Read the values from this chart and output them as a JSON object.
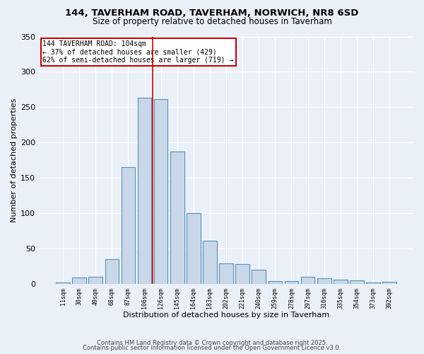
{
  "title": "144, TAVERHAM ROAD, TAVERHAM, NORWICH, NR8 6SD",
  "subtitle": "Size of property relative to detached houses in Taverham",
  "xlabel": "Distribution of detached houses by size in Taverham",
  "ylabel": "Number of detached properties",
  "bar_labels": [
    "11sqm",
    "30sqm",
    "49sqm",
    "68sqm",
    "87sqm",
    "106sqm",
    "126sqm",
    "145sqm",
    "164sqm",
    "183sqm",
    "202sqm",
    "221sqm",
    "240sqm",
    "259sqm",
    "278sqm",
    "297sqm",
    "316sqm",
    "335sqm",
    "354sqm",
    "373sqm",
    "392sqm"
  ],
  "bar_values": [
    2,
    9,
    10,
    35,
    165,
    263,
    261,
    187,
    100,
    61,
    29,
    28,
    20,
    4,
    4,
    10,
    8,
    6,
    5,
    2,
    3
  ],
  "bar_color": "#c8d8e8",
  "bar_edge_color": "#5b8db8",
  "bg_color": "#eaf0f8",
  "grid_color": "#ffffff",
  "vline_color": "#cc0000",
  "annotation_text": "144 TAVERHAM ROAD: 104sqm\n← 37% of detached houses are smaller (429)\n62% of semi-detached houses are larger (719) →",
  "annotation_box_color": "#ffffff",
  "annotation_box_edge": "#cc0000",
  "ylim": [
    0,
    350
  ],
  "yticks": [
    0,
    50,
    100,
    150,
    200,
    250,
    300,
    350
  ],
  "footer_line1": "Contains HM Land Registry data © Crown copyright and database right 2025.",
  "footer_line2": "Contains public sector information licensed under the Open Government Licence v3.0.",
  "title_fontsize": 9.5,
  "subtitle_fontsize": 8.5
}
